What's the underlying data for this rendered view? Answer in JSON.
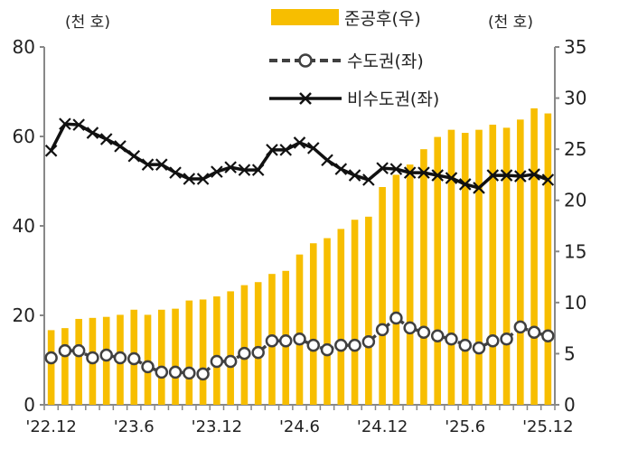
{
  "chart_data": {
    "type": "bar+line",
    "left_unit": "(천 호)",
    "right_unit": "(천 호)",
    "left_ylim": [
      0,
      80
    ],
    "left_ticks": [
      0,
      20,
      40,
      60,
      80
    ],
    "right_ylim": [
      0,
      35
    ],
    "right_ticks": [
      0,
      5,
      10,
      15,
      20,
      25,
      30,
      35
    ],
    "x_tick_labels": [
      "'22.12",
      "'23.6",
      "'23.12",
      "'24.6",
      "'24.12",
      "'25.6",
      "'25.12"
    ],
    "x_tick_every": 6,
    "grid": false,
    "legend_position": "top",
    "series": [
      {
        "name": "준공후(우)",
        "type": "bar",
        "axis": "right",
        "color": "#F7BE00",
        "values": [
          7.3,
          7.5,
          8.4,
          8.5,
          8.6,
          8.8,
          9.3,
          8.8,
          9.3,
          9.4,
          10.2,
          10.3,
          10.6,
          11.1,
          11.7,
          12.0,
          12.8,
          13.1,
          14.7,
          15.8,
          16.3,
          17.2,
          18.1,
          18.4,
          21.3,
          22.5,
          23.5,
          25.0,
          26.2,
          26.9,
          26.6,
          26.9,
          27.4,
          27.1,
          27.9,
          29.0,
          28.5
        ]
      },
      {
        "name": "수도권(좌)",
        "type": "line",
        "axis": "left",
        "marker": "circle",
        "dash": true,
        "color": "#404040",
        "values": [
          10.5,
          12.1,
          12.1,
          10.5,
          11.1,
          10.5,
          10.3,
          8.5,
          7.3,
          7.3,
          7.1,
          6.9,
          9.7,
          9.7,
          11.5,
          11.7,
          14.3,
          14.3,
          14.7,
          13.3,
          12.3,
          13.3,
          13.3,
          14.1,
          16.8,
          19.4,
          17.2,
          16.2,
          15.4,
          14.7,
          13.3,
          12.7,
          14.3,
          14.7,
          17.4,
          16.2,
          15.4
        ]
      },
      {
        "name": "비수도권(좌)",
        "type": "line",
        "axis": "left",
        "marker": "x",
        "dash": false,
        "color": "#111111",
        "values": [
          56.8,
          62.8,
          62.6,
          60.8,
          59.4,
          57.8,
          55.6,
          53.7,
          53.7,
          51.9,
          50.5,
          50.5,
          52.1,
          53.1,
          52.5,
          52.5,
          57.0,
          57.0,
          58.6,
          57.4,
          54.7,
          52.7,
          51.3,
          50.3,
          52.9,
          52.7,
          51.9,
          51.9,
          51.3,
          50.7,
          49.3,
          48.5,
          51.3,
          51.3,
          51.1,
          51.5,
          50.3
        ]
      }
    ]
  }
}
